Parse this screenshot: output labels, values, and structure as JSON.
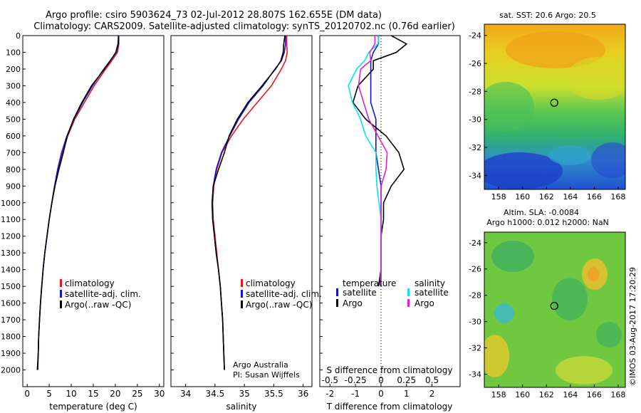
{
  "title": {
    "line1": "Argo profile: csiro 5903624_73 02-Jul-2012 28.807S 162.655E (DM data)",
    "line2": "Climatology: CARS2009. Satellite-adjusted climatology: synTS_20120702.nc (0.76d earlier)"
  },
  "colors": {
    "climatology": "#e8141e",
    "satellite": "#1414d8",
    "argo": "#000000",
    "sat_salinity": "#00e8f0",
    "argo_salinity": "#e020d0"
  },
  "panel_labels": {
    "temp_xlabel": "temperature (deg C)",
    "sal_xlabel": "salinity",
    "diff_top_label": "S difference from climatology",
    "diff_bottom_label": "T difference from climatology",
    "sal_credit1": "Argo Australia",
    "sal_credit2": "PI: Susan Wijffels"
  },
  "legends": {
    "profile": [
      "climatology",
      "satellite-adj. clim.",
      "Argo(..raw -QC)"
    ],
    "diff_temp_header": "temperature",
    "diff_sal_header": "salinity",
    "diff_items": [
      "satellite",
      "Argo"
    ]
  },
  "maps": {
    "sst_title": "sat. SST: 20.6  Argo: 20.5",
    "sla_title1": "Altim. SLA: -0.0084",
    "sla_title2": "Argo h1000: 0.012  h2000: NaN",
    "lat_ticks": [
      "-24",
      "-26",
      "-28",
      "-30",
      "-32",
      "-34"
    ],
    "lon_ticks": [
      "158",
      "160",
      "162",
      "164",
      "166",
      "168"
    ],
    "float_lon": 162.655,
    "float_lat": -28.807
  },
  "watermark": "©IMOS 03-Aug-2017 17:20:29",
  "chart_data": [
    {
      "type": "line",
      "panel": "temperature",
      "xlabel": "temperature (deg C)",
      "ylabel": "",
      "xlim": [
        -1,
        31
      ],
      "ylim": [
        0,
        2100
      ],
      "y_inverted": true,
      "x_ticks": [
        0,
        5,
        10,
        15,
        20,
        25,
        30
      ],
      "y_ticks": [
        0,
        100,
        200,
        300,
        400,
        500,
        600,
        700,
        800,
        900,
        1000,
        1100,
        1200,
        1300,
        1400,
        1500,
        1600,
        1700,
        1800,
        1900,
        2000
      ],
      "depth": [
        0,
        50,
        100,
        150,
        200,
        300,
        400,
        500,
        600,
        700,
        800,
        900,
        1000,
        1100,
        1200,
        1300,
        1400,
        1500,
        1600,
        1700,
        1800,
        1900,
        2000
      ],
      "series": [
        {
          "name": "climatology",
          "values": [
            20.8,
            20.8,
            20.5,
            19.2,
            17.8,
            15.2,
            13.0,
            10.8,
            9.2,
            8.0,
            7.0,
            6.2,
            5.6,
            5.0,
            4.5,
            4.0,
            3.6,
            3.3,
            3.0,
            2.8,
            2.6,
            2.5,
            2.4
          ]
        },
        {
          "name": "satellite-adj. clim.",
          "values": [
            20.7,
            20.7,
            20.2,
            18.8,
            17.4,
            14.8,
            12.6,
            10.6,
            9.0,
            7.8,
            6.9,
            6.2,
            5.6,
            5.0,
            4.5,
            4.0,
            3.6,
            3.3,
            3.0,
            2.8,
            2.6,
            2.5,
            2.4
          ]
        },
        {
          "name": "Argo(..raw -QC)",
          "values": [
            20.7,
            20.6,
            20.1,
            18.9,
            17.5,
            14.6,
            12.4,
            10.5,
            9.1,
            8.2,
            7.2,
            6.3,
            5.6,
            5.0,
            4.5,
            4.0,
            3.6,
            3.3,
            3.0,
            2.8,
            2.6,
            2.5,
            2.3
          ]
        }
      ]
    },
    {
      "type": "line",
      "panel": "salinity",
      "xlabel": "salinity",
      "xlim": [
        33.75,
        36.15
      ],
      "ylim": [
        0,
        2100
      ],
      "y_inverted": true,
      "x_ticks": [
        34,
        34.5,
        35,
        35.5,
        36
      ],
      "depth": [
        0,
        50,
        100,
        150,
        200,
        300,
        400,
        500,
        600,
        700,
        800,
        900,
        1000,
        1100,
        1200,
        1300,
        1400,
        1500,
        1600,
        1700,
        1800,
        1900,
        2000
      ],
      "series": [
        {
          "name": "climatology",
          "values": [
            35.72,
            35.72,
            35.73,
            35.7,
            35.63,
            35.46,
            35.22,
            34.98,
            34.78,
            34.62,
            34.53,
            34.48,
            34.46,
            34.47,
            34.5,
            34.53,
            34.56,
            34.59,
            34.61,
            34.63,
            34.64,
            34.65,
            34.66
          ]
        },
        {
          "name": "satellite-adj. clim.",
          "values": [
            35.7,
            35.7,
            35.68,
            35.63,
            35.52,
            35.32,
            35.08,
            34.9,
            34.75,
            34.61,
            34.52,
            34.47,
            34.45,
            34.46,
            34.49,
            34.52,
            34.56,
            34.59,
            34.61,
            34.63,
            34.64,
            34.65,
            34.66
          ]
        },
        {
          "name": "Argo(..raw -QC)",
          "values": [
            35.69,
            35.67,
            35.66,
            35.62,
            35.53,
            35.3,
            35.06,
            34.88,
            34.74,
            34.66,
            34.56,
            34.47,
            34.45,
            34.46,
            34.49,
            34.52,
            34.56,
            34.59,
            34.61,
            34.63,
            34.64,
            34.65,
            34.66
          ]
        }
      ]
    },
    {
      "type": "line",
      "panel": "difference",
      "top_xlabel": "S difference from climatology",
      "bottom_xlabel": "T difference from climatology",
      "xlim_T": [
        -2.4,
        3.1
      ],
      "xlim_S": [
        -0.6,
        0.775
      ],
      "ylim": [
        0,
        2100
      ],
      "y_inverted": true,
      "x_ticks_T": [
        -2,
        -1,
        0,
        1,
        2
      ],
      "x_ticks_S": [
        -0.5,
        -0.25,
        0,
        0.25,
        0.5
      ],
      "depth": [
        0,
        50,
        100,
        150,
        200,
        300,
        400,
        500,
        600,
        700,
        800,
        900,
        1000,
        1100,
        1200,
        1300,
        1400,
        1500
      ],
      "series": [
        {
          "name": "temperature satellite",
          "values": [
            -0.1,
            -0.1,
            -0.3,
            -0.4,
            -0.4,
            -0.4,
            -0.4,
            -0.2,
            -0.2,
            -0.2,
            -0.1,
            0.0,
            0.0,
            0.0,
            0.0,
            0.0,
            0.0,
            0.0
          ]
        },
        {
          "name": "temperature Argo",
          "values": [
            0.4,
            1.0,
            0.6,
            -0.3,
            -0.3,
            -0.9,
            -1.1,
            -0.6,
            0.2,
            0.7,
            0.9,
            0.4,
            0.1,
            0.1,
            0.0,
            0.0,
            0.0,
            -0.1
          ]
        },
        {
          "name": "salinity satellite",
          "values": [
            -0.02,
            -0.03,
            -0.12,
            -0.16,
            -0.24,
            -0.32,
            -0.28,
            -0.2,
            -0.15,
            -0.05,
            -0.05,
            -0.04,
            -0.02,
            0.0,
            0.0,
            0.0,
            0.0,
            0.0
          ]
        },
        {
          "name": "salinity Argo",
          "values": [
            -0.06,
            -0.06,
            -0.11,
            -0.1,
            -0.2,
            -0.22,
            -0.17,
            -0.12,
            -0.03,
            0.06,
            0.05,
            0.0,
            0.0,
            0.0,
            0.0,
            0.0,
            0.0,
            0.0
          ]
        }
      ]
    }
  ]
}
